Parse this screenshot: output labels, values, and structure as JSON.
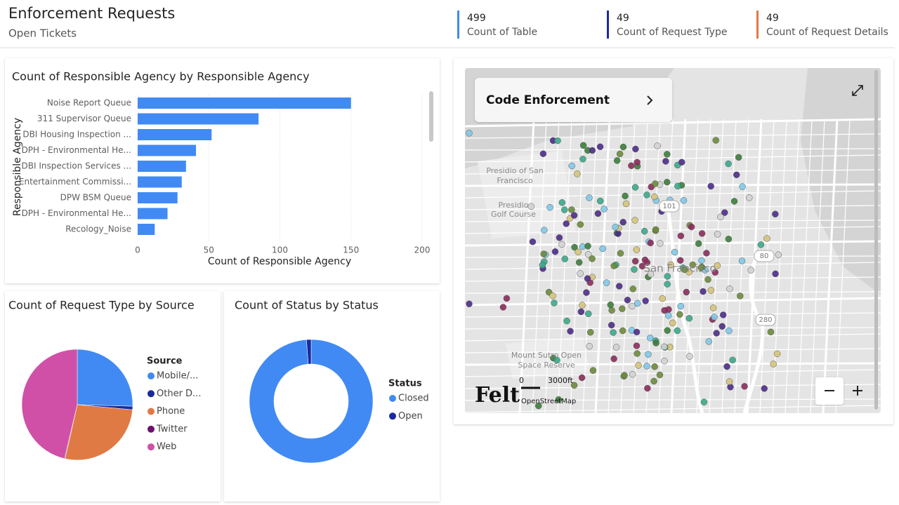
{
  "header": {
    "title": "Enforcement Requests",
    "subtitle": "Open Tickets"
  },
  "kpis": [
    {
      "value": 499,
      "label": "Count of Table",
      "color": "#418af3"
    },
    {
      "value": 49,
      "label": "Count of Request Type",
      "color": "#1a2a9c"
    },
    {
      "value": 49,
      "label": "Count of Request Details",
      "color": "#e07a45"
    }
  ],
  "bar_chart": {
    "type": "bar",
    "title": "Count of Responsible Agency by Responsible Agency",
    "x_label": "Count of Responsible Agency",
    "y_label": "Responsible Agency",
    "categories": [
      "Noise Report Queue",
      "311 Supervisor Queue",
      "DBI Housing Inspection ...",
      "DPH - Environmental He...",
      "DBI Inspection Services ...",
      "Entertainment Commissi...",
      "DPW BSM Queue",
      "DPH - Environmental He...",
      "Recology_Noise"
    ],
    "values": [
      150,
      85,
      52,
      41,
      34,
      31,
      28,
      21,
      12
    ],
    "color": "#418af3",
    "xlim": [
      0,
      200
    ],
    "xticks": [
      0,
      50,
      100,
      150,
      200
    ],
    "grid": true
  },
  "pie_chart": {
    "type": "pie",
    "title": "Count of Request Type by Source",
    "legend_title": "Source",
    "categories": [
      "Mobile/...",
      "Other D...",
      "Phone",
      "Twitter",
      "Web"
    ],
    "values": [
      127,
      5,
      135,
      1,
      231
    ],
    "colors": [
      "#418af3",
      "#1a2a9c",
      "#e07a45",
      "#6b1270",
      "#d050a8"
    ]
  },
  "donut_chart": {
    "type": "donut",
    "title": "Count of Status by Status",
    "legend_title": "Status",
    "categories": [
      "Closed",
      "Open"
    ],
    "values": [
      493,
      6
    ],
    "colors": [
      "#418af3",
      "#1a2a9c"
    ]
  },
  "map": {
    "card_title": "Code Enforcement",
    "places": [
      "Presidio of San",
      "Francisco",
      "Presidio",
      "Golf Course",
      "San Francisco",
      "Mount Sutro Open",
      "Space Reserve"
    ],
    "shields": [
      "101",
      "80",
      "280"
    ],
    "scale": [
      "0",
      "3000ft"
    ],
    "attribution": "OpenStreetMap",
    "logo": "Felt"
  }
}
